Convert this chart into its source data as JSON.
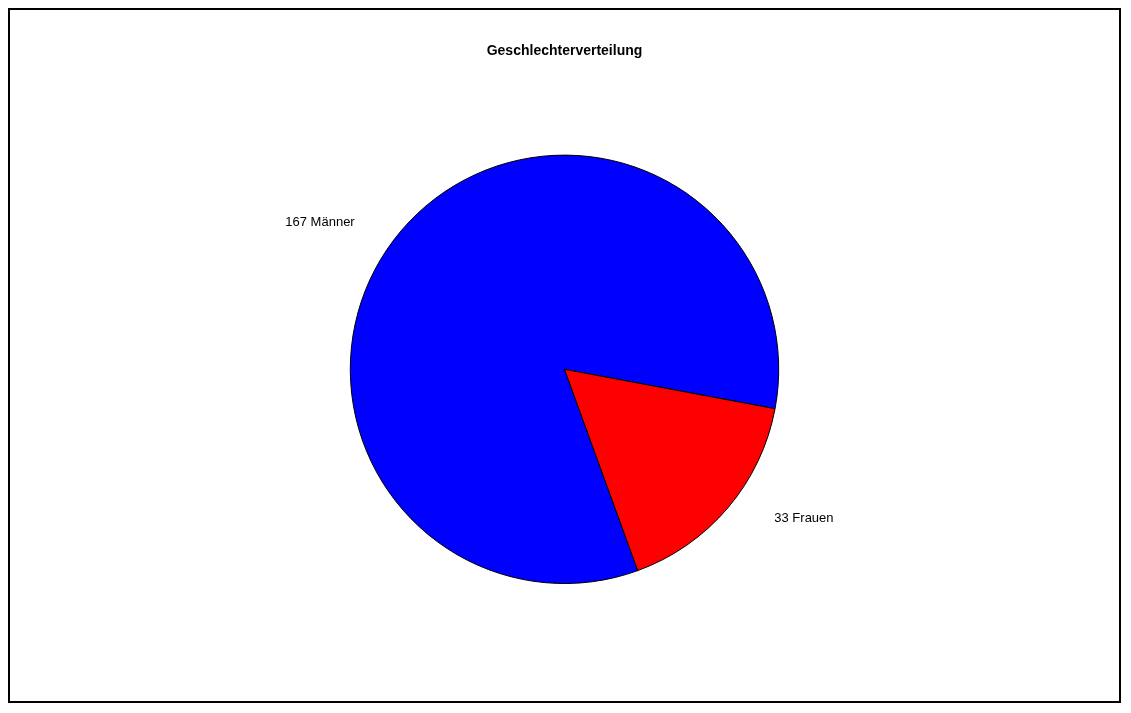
{
  "chart_data": {
    "type": "pie",
    "title": "Geschlechterverteilung",
    "categories": [
      "Männer",
      "Frauen"
    ],
    "values": [
      167,
      33
    ],
    "colors": [
      "#0000ff",
      "#ff0000"
    ],
    "data_labels": true
  }
}
